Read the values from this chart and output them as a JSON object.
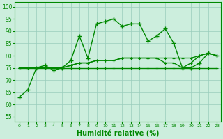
{
  "background_color": "#cceedd",
  "grid_color": "#99ccbb",
  "line_color": "#008800",
  "xlabel": "Humidité relative (%)",
  "xlabel_fontsize": 7,
  "ytick_labels": [
    "55",
    "60",
    "65",
    "70",
    "75",
    "80",
    "85",
    "90",
    "95",
    "100"
  ],
  "yticks": [
    55,
    60,
    65,
    70,
    75,
    80,
    85,
    90,
    95,
    100
  ],
  "xticks": [
    0,
    1,
    2,
    3,
    4,
    5,
    6,
    7,
    8,
    9,
    10,
    11,
    12,
    13,
    14,
    15,
    16,
    17,
    18,
    19,
    20,
    21,
    22,
    23
  ],
  "ylim": [
    53,
    102
  ],
  "xlim": [
    -0.5,
    23.5
  ],
  "series": [
    [
      63,
      66,
      75,
      76,
      74,
      75,
      78,
      88,
      79,
      93,
      94,
      95,
      92,
      93,
      93,
      86,
      88,
      91,
      85,
      75,
      75,
      77,
      81,
      80
    ],
    [
      75,
      75,
      75,
      75,
      75,
      75,
      75,
      75,
      75,
      75,
      75,
      75,
      75,
      75,
      75,
      75,
      75,
      75,
      75,
      75,
      75,
      75,
      75,
      75
    ],
    [
      75,
      75,
      75,
      75,
      75,
      75,
      76,
      77,
      77,
      78,
      78,
      78,
      79,
      79,
      79,
      79,
      79,
      79,
      79,
      79,
      79,
      80,
      81,
      80
    ],
    [
      75,
      75,
      75,
      75,
      75,
      75,
      76,
      77,
      77,
      78,
      78,
      78,
      79,
      79,
      79,
      79,
      79,
      77,
      77,
      75,
      77,
      80,
      81,
      80
    ]
  ],
  "marker_series": [
    "+",
    "+",
    "+",
    "+"
  ],
  "linestyle_series": [
    "-",
    "-",
    "-",
    "-"
  ]
}
